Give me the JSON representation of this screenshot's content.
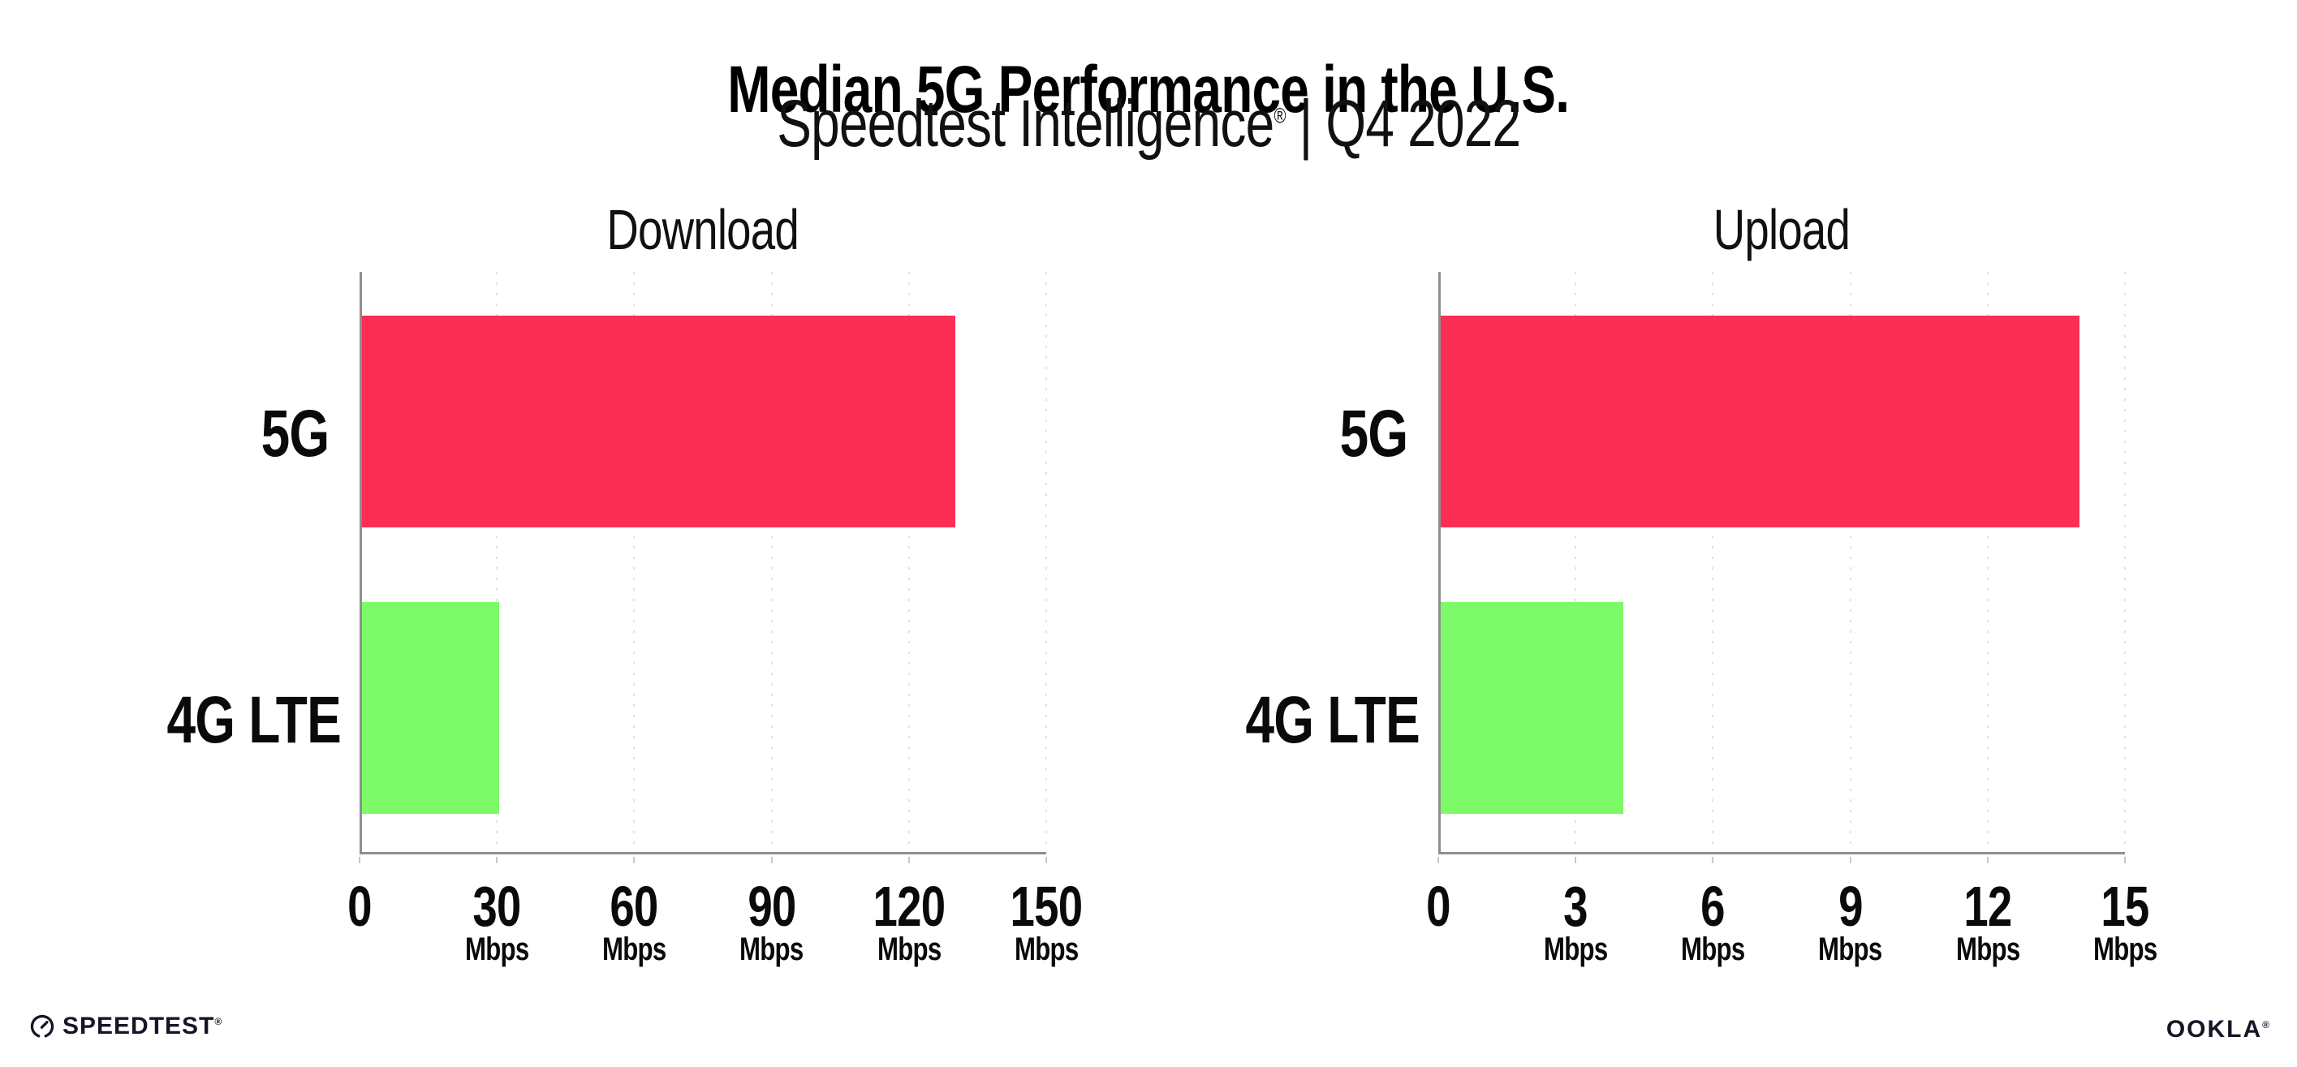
{
  "header": {
    "title": "Median 5G Performance in the U.S.",
    "subtitle_brand": "Speedtest Intelligence",
    "subtitle_mark": "®",
    "subtitle_rest": " | Q4 2022"
  },
  "chart_data": [
    {
      "type": "bar",
      "orientation": "horizontal",
      "title": "Download",
      "categories": [
        "5G",
        "4G LTE"
      ],
      "values": [
        130,
        30
      ],
      "unit": "Mbps",
      "xlabel": "",
      "ylabel": "",
      "xlim": [
        0,
        150
      ],
      "xticks": [
        0,
        30,
        60,
        90,
        120,
        150
      ],
      "bar_colors": [
        "#fc2e56",
        "#7cfa67"
      ],
      "grid": "vertical-dotted",
      "legend": "none"
    },
    {
      "type": "bar",
      "orientation": "horizontal",
      "title": "Upload",
      "categories": [
        "5G",
        "4G LTE"
      ],
      "values": [
        14,
        4
      ],
      "unit": "Mbps",
      "xlabel": "",
      "ylabel": "",
      "xlim": [
        0,
        15
      ],
      "xticks": [
        0,
        3,
        6,
        9,
        12,
        15
      ],
      "bar_colors": [
        "#fc2e56",
        "#7cfa67"
      ],
      "grid": "vertical-dotted",
      "legend": "none"
    }
  ],
  "footer": {
    "speedtest_label": "SPEEDTEST",
    "speedtest_mark": "®",
    "ookla_label": "OOKLA",
    "ookla_mark": "®"
  },
  "colors": {
    "bar_5g": "#fc2e56",
    "bar_4g_lte": "#7cfa67",
    "axis": "#8f8f8f",
    "gridline": "#e0e1ec",
    "text": "#0a0a0a"
  }
}
